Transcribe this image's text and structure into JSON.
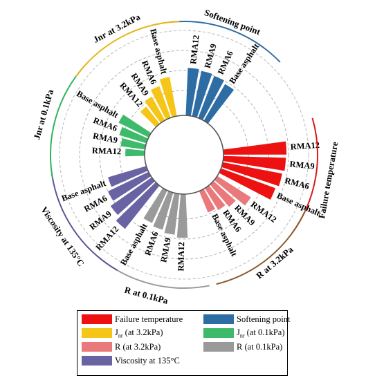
{
  "chart_data": {
    "type": "bar",
    "layout": "radial",
    "grid": true,
    "groups": [
      {
        "name": "Softening point",
        "color": "#2e6da4",
        "arc_color": "#2e6da4",
        "categories": [
          "RMA12",
          "RMA9",
          "RMA6",
          "Base asphalt"
        ],
        "values": [
          0.74,
          0.72,
          0.7,
          0.66
        ]
      },
      {
        "name": "Failure temperature",
        "color": "#ee1111",
        "arc_color": "#d91a1a",
        "categories": [
          "RMA12",
          "RMA9",
          "RMA6",
          "Base asphalt"
        ],
        "values": [
          0.98,
          0.97,
          0.94,
          0.9
        ]
      },
      {
        "name": "R at 3.2kPa",
        "color": "#e9797b",
        "arc_color": "#8b5a2b",
        "categories": [
          "RMA12",
          "RMA9",
          "RMA6",
          "Base asphalt"
        ],
        "values": [
          0.62,
          0.46,
          0.4,
          0.36
        ]
      },
      {
        "name": "R at 0.1kPa",
        "color": "#9a9a9a",
        "arc_color": "#9a9a9a",
        "categories": [
          "RMA12",
          "RMA9",
          "RMA6",
          "Base asphalt"
        ],
        "values": [
          0.68,
          0.64,
          0.6,
          0.56
        ]
      },
      {
        "name": "Viscosity at 135°C",
        "color": "#6a63a3",
        "arc_color": "#5b5598",
        "categories": [
          "RMA12",
          "RMA9",
          "RMA6",
          "Base asphalt"
        ],
        "values": [
          0.86,
          0.78,
          0.7,
          0.62
        ]
      },
      {
        "name": "Jnr at 0.1kPa",
        "color": "#3dba6a",
        "arc_color": "#2fb45a",
        "categories": [
          "RMA12",
          "RMA9",
          "RMA6",
          "Base asphalt"
        ],
        "values": [
          0.3,
          0.38,
          0.44,
          0.52
        ]
      },
      {
        "name": "Jnr at 3.2kPa",
        "color": "#f5c518",
        "arc_color": "#e8b61a",
        "categories": [
          "RMA12",
          "RMA9",
          "RMA6",
          "Base asphalt"
        ],
        "values": [
          0.34,
          0.42,
          0.52,
          0.62
        ]
      }
    ],
    "legend": [
      {
        "label": "Failure temperature",
        "sub": "",
        "suffix": "",
        "color": "#ee1111"
      },
      {
        "label": "Softening point",
        "sub": "",
        "suffix": "",
        "color": "#2e6da4"
      },
      {
        "label": "J",
        "sub": "nr",
        "suffix": " (at 3.2kPa)",
        "color": "#f5c518"
      },
      {
        "label": "J",
        "sub": "nr",
        "suffix": " (at 0.1kPa)",
        "color": "#3dba6a"
      },
      {
        "label": "R",
        "sub": "",
        "suffix": " (at 3.2kPa)",
        "color": "#e9797b"
      },
      {
        "label": "R",
        "sub": "",
        "suffix": " (at 0.1kPa)",
        "color": "#9a9a9a"
      },
      {
        "label": "Viscosity at 135°C",
        "sub": "",
        "suffix": "",
        "color": "#6a63a3"
      }
    ]
  }
}
